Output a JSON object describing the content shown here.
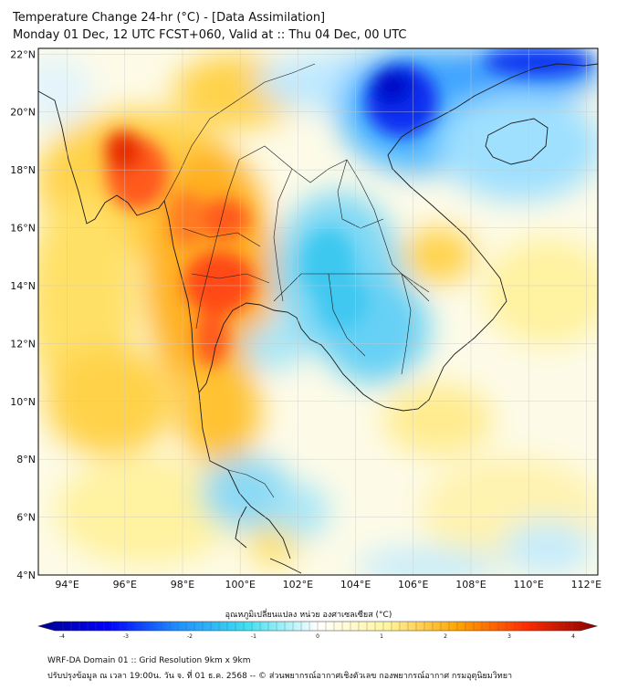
{
  "header": {
    "title_line1": "Temperature Change 24-hr (°C) - [Data Assimilation]",
    "title_line2": "Monday 01 Dec, 12 UTC FCST+060, Valid at :: Thu 04 Dec, 00 UTC"
  },
  "map": {
    "lat_labels": [
      "22°N",
      "20°N",
      "18°N",
      "16°N",
      "14°N",
      "12°N",
      "10°N",
      "8°N",
      "6°N",
      "4°N"
    ],
    "lat_values": [
      22,
      20,
      18,
      16,
      14,
      12,
      10,
      8,
      6,
      4
    ],
    "lon_labels": [
      "94°E",
      "96°E",
      "98°E",
      "100°E",
      "102°E",
      "104°E",
      "106°E",
      "108°E",
      "110°E",
      "112°E"
    ],
    "lon_values": [
      94,
      96,
      98,
      100,
      102,
      104,
      106,
      108,
      110,
      112
    ],
    "extent": {
      "lon_min": 93,
      "lon_max": 112.4,
      "lat_min": 4,
      "lat_max": 22.2
    }
  },
  "colorbar": {
    "label": "อุณหภูมิเปลี่ยนแปลง หน่วย องศาเซลเซียส (°C)",
    "tick_labels": [
      "-4",
      "-3",
      "-2",
      "-1",
      "0",
      "1",
      "2",
      "3",
      "4"
    ],
    "range": [
      -4,
      4
    ],
    "colors": [
      "#00008b",
      "#0000ff",
      "#1e90ff",
      "#40e0f0",
      "#ffffff",
      "#fff59d",
      "#ffa500",
      "#ff2a00",
      "#8b0000"
    ]
  },
  "footer": {
    "line1": "WRF-DA Domain 01 :: Grid Resolution 9km x 9km",
    "line2": "ปรับปรุงข้อมูล ณ เวลา 19:00น. วัน จ. ที่ 01 ธ.ค. 2568 -- © ส่วนพยากรณ์อากาศเชิงตัวเลข กองพยากรณ์อากาศ กรมอุตุนิยมวิทยา"
  }
}
